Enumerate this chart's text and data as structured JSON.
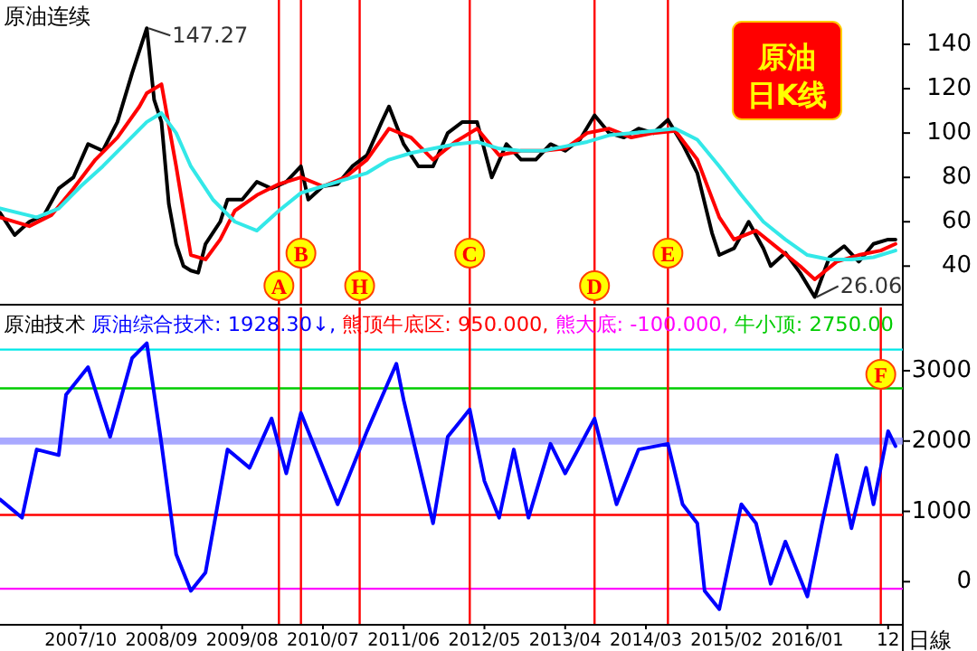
{
  "chart_data": [
    {
      "type": "line",
      "title": "原油连续",
      "tick_labels": "y",
      "grid": false,
      "xlim": [
        "2006-11",
        "2017-02"
      ],
      "ylim": [
        23,
        160
      ],
      "yticks": [
        40,
        60,
        80,
        100,
        120,
        140
      ],
      "series": [
        {
          "color": "#000000",
          "x": [
            "2006-11",
            "2007-01",
            "2007-03",
            "2007-05",
            "2007-07",
            "2007-09",
            "2007-11",
            "2008-01",
            "2008-03",
            "2008-05",
            "2008-07",
            "2008-08",
            "2008-09",
            "2008-10",
            "2008-11",
            "2008-12",
            "2009-01",
            "2009-02",
            "2009-03",
            "2009-05",
            "2009-06",
            "2009-08",
            "2009-10",
            "2009-12",
            "2010-02",
            "2010-04",
            "2010-05",
            "2010-07",
            "2010-09",
            "2010-11",
            "2011-01",
            "2011-03",
            "2011-04",
            "2011-06",
            "2011-08",
            "2011-10",
            "2011-12",
            "2012-02",
            "2012-04",
            "2012-06",
            "2012-08",
            "2012-10",
            "2012-12",
            "2013-02",
            "2013-04",
            "2013-06",
            "2013-08",
            "2013-10",
            "2013-12",
            "2014-02",
            "2014-04",
            "2014-06",
            "2014-08",
            "2014-10",
            "2014-12",
            "2015-01",
            "2015-03",
            "2015-05",
            "2015-07",
            "2015-08",
            "2015-10",
            "2015-12",
            "2016-02",
            "2016-04",
            "2016-06",
            "2016-08",
            "2016-10",
            "2016-12",
            "2017-01"
          ],
          "values": [
            64,
            54,
            60,
            63,
            75,
            80,
            95,
            92,
            105,
            127,
            147.27,
            115,
            105,
            68,
            50,
            40,
            38,
            37,
            50,
            60,
            70,
            70,
            78,
            75,
            78,
            85,
            70,
            76,
            77,
            85,
            90,
            105,
            112,
            95,
            85,
            85,
            100,
            105,
            105,
            80,
            95,
            88,
            88,
            95,
            92,
            97,
            108,
            100,
            98,
            102,
            100,
            106,
            95,
            82,
            55,
            45,
            48,
            60,
            48,
            40,
            46,
            37,
            26.06,
            44,
            49,
            42,
            50,
            52,
            52
          ]
        },
        {
          "color": "#ff0000",
          "x": [
            "2006-11",
            "2007-03",
            "2007-06",
            "2007-09",
            "2007-12",
            "2008-03",
            "2008-06",
            "2008-07",
            "2008-09",
            "2008-11",
            "2009-01",
            "2009-03",
            "2009-05",
            "2009-07",
            "2009-10",
            "2010-01",
            "2010-04",
            "2010-07",
            "2010-10",
            "2011-01",
            "2011-04",
            "2011-07",
            "2011-10",
            "2012-01",
            "2012-04",
            "2012-07",
            "2012-10",
            "2013-01",
            "2013-04",
            "2013-07",
            "2013-10",
            "2014-01",
            "2014-04",
            "2014-07",
            "2014-10",
            "2015-01",
            "2015-03",
            "2015-06",
            "2015-09",
            "2015-12",
            "2016-02",
            "2016-05",
            "2016-08",
            "2016-11",
            "2017-01"
          ],
          "values": [
            62,
            58,
            63,
            75,
            88,
            98,
            112,
            118,
            122,
            85,
            45,
            43,
            52,
            65,
            72,
            77,
            80,
            76,
            80,
            88,
            102,
            98,
            88,
            96,
            102,
            90,
            92,
            92,
            93,
            100,
            102,
            98,
            100,
            101,
            88,
            62,
            52,
            56,
            48,
            40,
            34,
            42,
            45,
            47,
            50
          ]
        },
        {
          "color": "#33e8e8",
          "x": [
            "2006-11",
            "2007-04",
            "2007-07",
            "2007-10",
            "2008-01",
            "2008-04",
            "2008-07",
            "2008-09",
            "2008-11",
            "2009-01",
            "2009-04",
            "2009-07",
            "2009-10",
            "2010-01",
            "2010-04",
            "2010-07",
            "2010-10",
            "2011-01",
            "2011-04",
            "2011-07",
            "2011-10",
            "2012-01",
            "2012-04",
            "2012-07",
            "2012-10",
            "2013-01",
            "2013-04",
            "2013-07",
            "2013-10",
            "2014-01",
            "2014-04",
            "2014-07",
            "2014-10",
            "2015-01",
            "2015-04",
            "2015-07",
            "2015-10",
            "2016-01",
            "2016-04",
            "2016-07",
            "2016-10",
            "2017-01"
          ],
          "values": [
            66,
            62,
            66,
            76,
            85,
            95,
            105,
            109,
            100,
            85,
            70,
            60,
            56,
            65,
            73,
            76,
            79,
            82,
            88,
            91,
            93,
            95,
            96,
            93,
            92,
            92,
            94,
            96,
            99,
            100,
            101,
            102,
            97,
            85,
            72,
            60,
            52,
            45,
            43,
            43,
            44,
            47
          ]
        }
      ],
      "ref_lines": [
        {
          "axis": "x",
          "value": "2010-01",
          "label": "A",
          "color": "#ff0000"
        },
        {
          "axis": "x",
          "value": "2010-04",
          "label": "B",
          "color": "#ff0000"
        },
        {
          "axis": "x",
          "value": "2010-12",
          "label": "H",
          "color": "#ff0000"
        },
        {
          "axis": "x",
          "value": "2012-03",
          "label": "C",
          "color": "#ff0000"
        },
        {
          "axis": "x",
          "value": "2013-08",
          "label": "D",
          "color": "#ff0000"
        },
        {
          "axis": "x",
          "value": "2014-06",
          "label": "E",
          "color": "#ff0000"
        }
      ],
      "annotations": [
        {
          "text": "147.27",
          "x": "2008-07",
          "y": 147.27
        },
        {
          "text": "26.06",
          "x": "2016-02",
          "y": 26.06
        },
        "原油",
        "日K线"
      ]
    },
    {
      "type": "line",
      "title": "原油技术",
      "xlabel": "日線",
      "legend": "top left",
      "grid": false,
      "xlim": [
        "2006-11",
        "2017-02"
      ],
      "ylim": [
        -600,
        3900
      ],
      "yticks": [
        0,
        1000,
        2000,
        3000
      ],
      "xticks": [
        {
          "value": "2007-10",
          "label": "2007/10"
        },
        {
          "value": "2008-09",
          "label": "2008/09"
        },
        {
          "value": "2009-08",
          "label": "2009/08"
        },
        {
          "value": "2010-07",
          "label": "2010/07"
        },
        {
          "value": "2011-06",
          "label": "2011/06"
        },
        {
          "value": "2012-05",
          "label": "2012/05"
        },
        {
          "value": "2013-04",
          "label": "2013/04"
        },
        {
          "value": "2014-03",
          "label": "2014/03"
        },
        {
          "value": "2015-02",
          "label": "2015/02"
        },
        {
          "value": "2016-01",
          "label": "2016/01"
        },
        {
          "value": "2016-12",
          "label": "12"
        }
      ],
      "series": [
        {
          "name": "原油综合技术: 1928.30↓,",
          "color": "#0000ff",
          "x": [
            "2006-11",
            "2007-02",
            "2007-04",
            "2007-07",
            "2007-08",
            "2007-11",
            "2008-02",
            "2008-05",
            "2008-07",
            "2008-09",
            "2008-11",
            "2009-01",
            "2009-03",
            "2009-06",
            "2009-09",
            "2009-12",
            "2010-02",
            "2010-04",
            "2010-09",
            "2011-01",
            "2011-05",
            "2011-06",
            "2011-10",
            "2011-12",
            "2012-03",
            "2012-05",
            "2012-07",
            "2012-09",
            "2012-11",
            "2013-02",
            "2013-04",
            "2013-08",
            "2013-11",
            "2014-02",
            "2014-06",
            "2014-08",
            "2014-10",
            "2014-11",
            "2015-01",
            "2015-04",
            "2015-06",
            "2015-08",
            "2015-10",
            "2016-01",
            "2016-03",
            "2016-05",
            "2016-07",
            "2016-09",
            "2016-10",
            "2016-12",
            "2017-01"
          ],
          "values": [
            1170,
            910,
            1880,
            1800,
            2660,
            3050,
            2060,
            3180,
            3390,
            1960,
            390,
            -130,
            130,
            1880,
            1620,
            2320,
            1540,
            2400,
            1100,
            2140,
            3100,
            2580,
            830,
            2060,
            2450,
            1430,
            910,
            1880,
            910,
            1960,
            1540,
            2320,
            1100,
            1880,
            1960,
            1100,
            830,
            -130,
            -390,
            1100,
            830,
            -30,
            570,
            -210,
            830,
            1800,
            760,
            1620,
            1100,
            2140,
            1928.3
          ]
        }
      ],
      "bands": [
        {
          "axis": "y",
          "from": 1950,
          "to": 2050,
          "color": "#8c8cff"
        }
      ],
      "ref_lines": [
        {
          "axis": "y",
          "value": 950,
          "label": "熊顶牛底区: 950.000,",
          "color": "#ff0000"
        },
        {
          "axis": "y",
          "value": -100,
          "label": "熊大底: -100.000,",
          "color": "#ff00ff"
        },
        {
          "axis": "y",
          "value": 2750,
          "label": "牛小顶: 2750.00",
          "color": "#00cc00"
        },
        {
          "axis": "y",
          "value": 3300,
          "color": "#00e8e8"
        },
        {
          "axis": "x",
          "value": "2010-01",
          "color": "#ff0000"
        },
        {
          "axis": "x",
          "value": "2010-04",
          "color": "#ff0000"
        },
        {
          "axis": "x",
          "value": "2010-12",
          "color": "#ff0000"
        },
        {
          "axis": "x",
          "value": "2012-03",
          "color": "#ff0000"
        },
        {
          "axis": "x",
          "value": "2013-08",
          "color": "#ff0000"
        },
        {
          "axis": "x",
          "value": "2014-06",
          "color": "#ff0000"
        },
        {
          "axis": "x",
          "value": "2016-11",
          "label": "F",
          "color": "#ff0000"
        }
      ]
    }
  ]
}
